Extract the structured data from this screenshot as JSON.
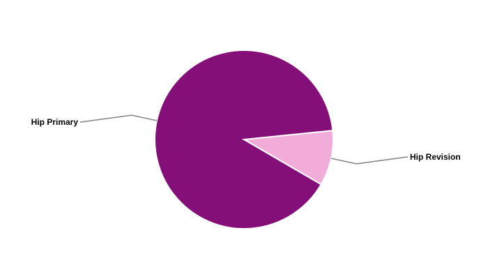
{
  "chart_data": {
    "type": "pie",
    "title": "",
    "slices": [
      {
        "label": "Hip Revision",
        "value": 10,
        "color": "#F2ACDA"
      },
      {
        "label": "Hip Primary",
        "value": 90,
        "color": "#850F79"
      }
    ],
    "legend": "none",
    "leader_line_color": "#808080"
  }
}
